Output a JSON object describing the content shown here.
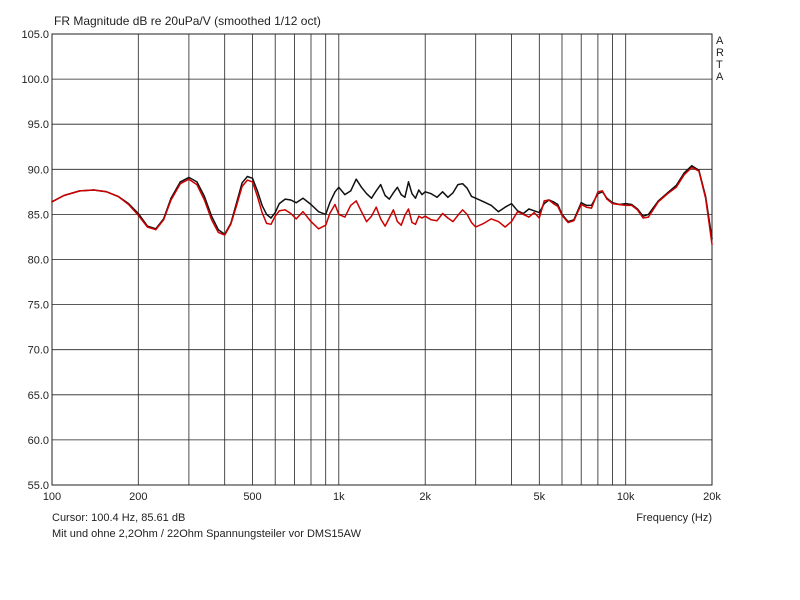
{
  "chart_data": {
    "type": "line",
    "title": "FR Magnitude dB re 20uPa/V (smoothed 1/12 oct)",
    "xlabel": "Frequency (Hz)",
    "ylabel": "",
    "xscale": "log",
    "xlim": [
      100,
      20000
    ],
    "ylim": [
      55,
      105
    ],
    "grid": true,
    "x_ticks": [
      {
        "value": 100,
        "label": "100"
      },
      {
        "value": 200,
        "label": "200"
      },
      {
        "value": 500,
        "label": "500"
      },
      {
        "value": 1000,
        "label": "1k"
      },
      {
        "value": 2000,
        "label": "2k"
      },
      {
        "value": 5000,
        "label": "5k"
      },
      {
        "value": 10000,
        "label": "10k"
      },
      {
        "value": 20000,
        "label": "20k"
      }
    ],
    "x_gridlines": [
      100,
      200,
      300,
      400,
      500,
      600,
      700,
      800,
      900,
      1000,
      2000,
      3000,
      4000,
      5000,
      6000,
      7000,
      8000,
      9000,
      10000,
      20000
    ],
    "y_ticks": [
      {
        "value": 55,
        "label": "55.0"
      },
      {
        "value": 60,
        "label": "60.0"
      },
      {
        "value": 65,
        "label": "65.0"
      },
      {
        "value": 70,
        "label": "70.0"
      },
      {
        "value": 75,
        "label": "75.0"
      },
      {
        "value": 80,
        "label": "80.0"
      },
      {
        "value": 85,
        "label": "85.0"
      },
      {
        "value": 90,
        "label": "90.0"
      },
      {
        "value": 95,
        "label": "95.0"
      },
      {
        "value": 100,
        "label": "100.0"
      },
      {
        "value": 105,
        "label": "105.0"
      }
    ],
    "series": [
      {
        "color": "#111111",
        "x": [
          100,
          110,
          125,
          140,
          155,
          170,
          185,
          200,
          215,
          230,
          245,
          260,
          280,
          300,
          320,
          340,
          360,
          380,
          400,
          420,
          440,
          460,
          480,
          500,
          520,
          540,
          560,
          580,
          600,
          620,
          650,
          680,
          710,
          750,
          800,
          850,
          900,
          930,
          970,
          1000,
          1050,
          1100,
          1150,
          1200,
          1250,
          1300,
          1350,
          1400,
          1450,
          1500,
          1550,
          1600,
          1650,
          1700,
          1750,
          1800,
          1850,
          1900,
          1950,
          2000,
          2100,
          2200,
          2300,
          2400,
          2500,
          2600,
          2700,
          2800,
          2900,
          3000,
          3200,
          3400,
          3600,
          3800,
          4000,
          4200,
          4400,
          4600,
          4800,
          5000,
          5200,
          5400,
          5600,
          5800,
          6000,
          6300,
          6600,
          7000,
          7300,
          7600,
          8000,
          8300,
          8600,
          9000,
          9500,
          10000,
          10500,
          11000,
          11500,
          12000,
          13000,
          14000,
          15000,
          16000,
          17000,
          18000,
          19000,
          20000
        ],
        "y": [
          86.4,
          87.1,
          87.6,
          87.7,
          87.5,
          87.0,
          86.2,
          85.1,
          83.7,
          83.4,
          84.5,
          86.8,
          88.6,
          89.1,
          88.6,
          87.0,
          84.8,
          83.3,
          82.8,
          84.0,
          86.3,
          88.5,
          89.2,
          89.0,
          87.6,
          86.0,
          85.0,
          84.6,
          85.2,
          86.2,
          86.7,
          86.6,
          86.3,
          86.8,
          86.1,
          85.3,
          85.0,
          86.3,
          87.5,
          88.0,
          87.2,
          87.6,
          88.9,
          88.0,
          87.3,
          86.8,
          87.6,
          88.3,
          87.1,
          86.7,
          87.4,
          88.0,
          87.2,
          86.9,
          88.6,
          87.3,
          86.8,
          87.7,
          87.2,
          87.5,
          87.3,
          86.9,
          87.5,
          86.9,
          87.4,
          88.3,
          88.4,
          87.9,
          87.0,
          86.8,
          86.4,
          86.0,
          85.3,
          85.8,
          86.2,
          85.4,
          85.1,
          85.6,
          85.4,
          85.2,
          86.2,
          86.6,
          86.4,
          86.1,
          85.0,
          84.2,
          84.4,
          86.3,
          86.0,
          86.0,
          87.3,
          87.5,
          86.8,
          86.3,
          86.1,
          86.2,
          86.1,
          85.6,
          84.8,
          85.0,
          86.5,
          87.4,
          88.2,
          89.6,
          90.4,
          89.9,
          87.0,
          82.3
        ]
      },
      {
        "color": "#cc0000",
        "x": [
          100,
          110,
          125,
          140,
          155,
          170,
          185,
          200,
          215,
          230,
          245,
          260,
          280,
          300,
          320,
          340,
          360,
          380,
          400,
          420,
          440,
          460,
          480,
          500,
          520,
          540,
          560,
          580,
          600,
          620,
          650,
          680,
          710,
          750,
          800,
          850,
          900,
          930,
          970,
          1000,
          1050,
          1100,
          1150,
          1200,
          1250,
          1300,
          1350,
          1400,
          1450,
          1500,
          1550,
          1600,
          1650,
          1700,
          1750,
          1800,
          1850,
          1900,
          1950,
          2000,
          2100,
          2200,
          2300,
          2400,
          2500,
          2600,
          2700,
          2800,
          2900,
          3000,
          3200,
          3400,
          3600,
          3800,
          4000,
          4200,
          4400,
          4600,
          4800,
          5000,
          5200,
          5400,
          5600,
          5800,
          6000,
          6300,
          6600,
          7000,
          7300,
          7600,
          8000,
          8300,
          8600,
          9000,
          9500,
          10000,
          10500,
          11000,
          11500,
          12000,
          13000,
          14000,
          15000,
          16000,
          17000,
          18000,
          19000,
          20000
        ],
        "y": [
          86.4,
          87.1,
          87.6,
          87.7,
          87.5,
          87.0,
          86.1,
          84.9,
          83.6,
          83.3,
          84.4,
          86.6,
          88.4,
          88.9,
          88.3,
          86.6,
          84.4,
          83.0,
          82.7,
          83.9,
          86.0,
          88.1,
          88.8,
          88.6,
          87.0,
          85.2,
          84.0,
          83.9,
          84.8,
          85.4,
          85.5,
          85.1,
          84.5,
          85.3,
          84.2,
          83.4,
          83.8,
          85.1,
          86.1,
          85.0,
          84.7,
          86.0,
          86.5,
          85.3,
          84.2,
          84.8,
          85.8,
          84.5,
          83.7,
          84.6,
          85.5,
          84.2,
          83.8,
          84.9,
          85.6,
          84.1,
          83.9,
          84.8,
          84.6,
          84.8,
          84.4,
          84.3,
          85.1,
          84.6,
          84.2,
          84.9,
          85.5,
          85.0,
          84.1,
          83.6,
          84.0,
          84.5,
          84.2,
          83.6,
          84.2,
          85.3,
          85.0,
          84.7,
          85.2,
          84.6,
          86.5,
          86.6,
          86.2,
          85.9,
          84.9,
          84.1,
          84.3,
          86.1,
          85.8,
          85.7,
          87.5,
          87.6,
          86.7,
          86.2,
          86.1,
          86.0,
          86.0,
          85.5,
          84.6,
          84.7,
          86.4,
          87.3,
          88.0,
          89.4,
          90.2,
          89.8,
          86.8,
          81.7
        ]
      }
    ]
  },
  "cursor_text": "Cursor: 100.4 Hz, 85.61 dB",
  "caption": "Mit und ohne 2,2Ohm / 22Ohm Spannungsteiler vor DMS15AW",
  "side_letters": [
    "A",
    "R",
    "T",
    "A"
  ]
}
